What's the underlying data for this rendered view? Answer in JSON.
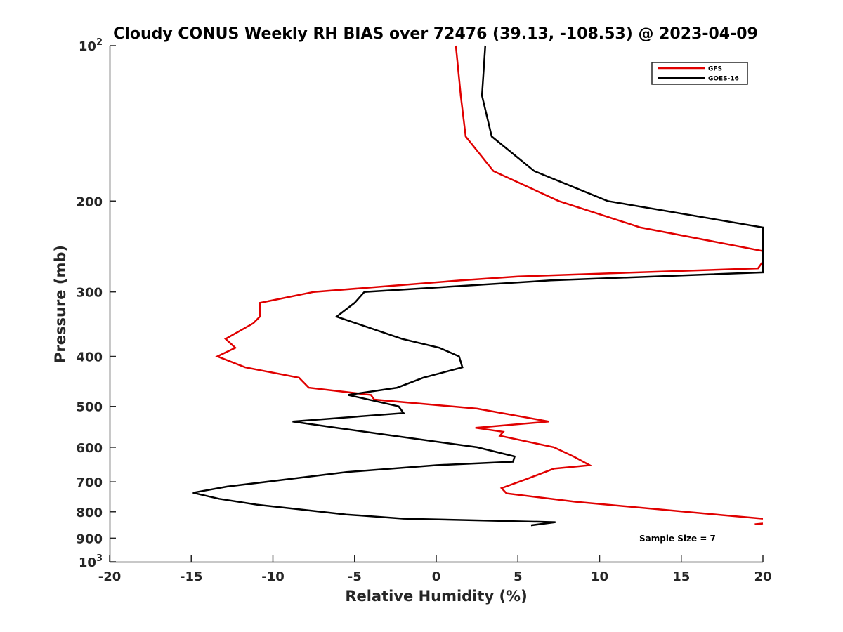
{
  "chart_data": {
    "type": "line",
    "title": "Cloudy CONUS Weekly RH BIAS over 72476 (39.13, -108.53) @ 2023-04-09",
    "xlabel": "Relative Humidity (%)",
    "ylabel": "Pressure (mb)",
    "xlim": [
      -20,
      20
    ],
    "ylim": [
      100,
      1000
    ],
    "y_scale": "log",
    "y_reversed": true,
    "grid": false,
    "legend_position": "top-right",
    "x_ticks": [
      -20,
      -15,
      -10,
      -5,
      0,
      5,
      10,
      15,
      20
    ],
    "x_tick_labels": [
      "-20",
      "-15",
      "-10",
      "-5",
      "0",
      "5",
      "10",
      "15",
      "20"
    ],
    "y_ticks": [
      {
        "value": 100,
        "base": "10",
        "exp": "2"
      },
      {
        "value": 200,
        "label": "200"
      },
      {
        "value": 300,
        "label": "300"
      },
      {
        "value": 400,
        "label": "400"
      },
      {
        "value": 500,
        "label": "500"
      },
      {
        "value": 600,
        "label": "600"
      },
      {
        "value": 700,
        "label": "700"
      },
      {
        "value": 800,
        "label": "800"
      },
      {
        "value": 900,
        "label": "900"
      },
      {
        "value": 1000,
        "base": "10",
        "exp": "3"
      }
    ],
    "series": [
      {
        "name": "GFS",
        "color": "#e00000",
        "segments": [
          [
            [
              1.2,
              100
            ],
            [
              1.5,
              125
            ],
            [
              1.8,
              150
            ],
            [
              3.5,
              175
            ],
            [
              7.5,
              200
            ],
            [
              12.5,
              225
            ],
            [
              20,
              250
            ],
            [
              20,
              262
            ],
            [
              19.7,
              270
            ],
            [
              5,
              280
            ],
            [
              1.5,
              285
            ],
            [
              -7.5,
              300
            ],
            [
              -10.8,
              315
            ],
            [
              -10.8,
              335
            ],
            [
              -11.2,
              345
            ],
            [
              -12.9,
              370
            ],
            [
              -12.3,
              385
            ],
            [
              -13.4,
              400
            ],
            [
              -11.7,
              420
            ],
            [
              -8.4,
              440
            ],
            [
              -7.8,
              460
            ],
            [
              -4,
              475
            ],
            [
              -3.8,
              485
            ],
            [
              2.5,
              505
            ],
            [
              6.9,
              535
            ],
            [
              2.4,
              550
            ],
            [
              4.1,
              560
            ],
            [
              3.9,
              570
            ],
            [
              7.2,
              600
            ],
            [
              8.4,
              625
            ],
            [
              9.4,
              650
            ],
            [
              7.2,
              660
            ],
            [
              5.6,
              690
            ],
            [
              4.0,
              720
            ],
            [
              4.3,
              737
            ],
            [
              8.5,
              765
            ],
            [
              17.5,
              812
            ],
            [
              20,
              825
            ]
          ],
          [
            [
              19.5,
              846
            ],
            [
              20,
              843
            ]
          ]
        ]
      },
      {
        "name": "GOES-16",
        "color": "#000000",
        "segments": [
          [
            [
              3.0,
              100
            ],
            [
              2.8,
              125
            ],
            [
              3.4,
              150
            ],
            [
              6.0,
              175
            ],
            [
              10.5,
              200
            ],
            [
              20,
              225
            ],
            [
              20,
              275
            ],
            [
              7,
              285
            ],
            [
              -4.4,
              300
            ],
            [
              -5,
              315
            ],
            [
              -6.1,
              335
            ],
            [
              -2.1,
              370
            ],
            [
              0.2,
              385
            ],
            [
              1.4,
              400
            ],
            [
              1.6,
              420
            ],
            [
              -0.8,
              440
            ],
            [
              -2.4,
              460
            ],
            [
              -5.4,
              475
            ],
            [
              -2.3,
              500
            ],
            [
              -2.0,
              515
            ],
            [
              -8.8,
              535
            ],
            [
              -6.1,
              550
            ],
            [
              -2.6,
              570
            ],
            [
              2.5,
              600
            ],
            [
              4.8,
              625
            ],
            [
              4.7,
              640
            ],
            [
              0,
              650
            ],
            [
              -5.5,
              670
            ],
            [
              -9.6,
              695
            ],
            [
              -12.8,
              715
            ],
            [
              -14.9,
              735
            ],
            [
              -13.3,
              755
            ],
            [
              -11,
              775
            ],
            [
              -8.6,
              790
            ],
            [
              -5.5,
              810
            ],
            [
              -2,
              825
            ],
            [
              7.3,
              838
            ],
            [
              5.8,
              850
            ]
          ]
        ]
      }
    ],
    "annotations": [
      {
        "text": "Sample Size = 7"
      }
    ]
  }
}
